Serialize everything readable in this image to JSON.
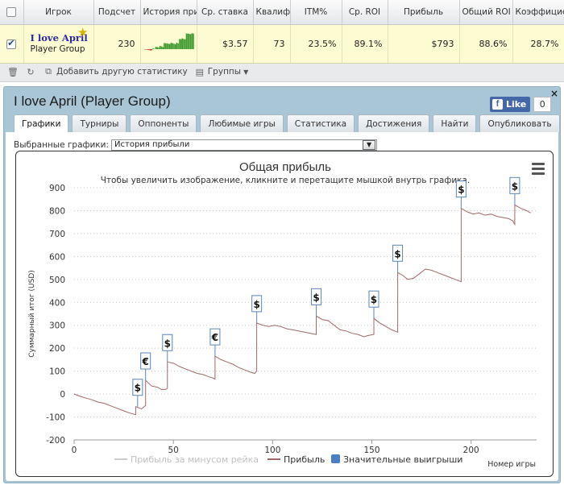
{
  "columns": {
    "player": "Игрок",
    "count": "Подсчет",
    "history": "История при",
    "avg_stake": "Ср. ставка",
    "qualif": "Квалиф",
    "itm": "ITM%",
    "avg_roi": "Ср. ROI",
    "profit": "Прибыль",
    "total_roi": "Общий ROI",
    "coef": "Коэффициент"
  },
  "row": {
    "name": "I love April",
    "group": "Player Group",
    "count": "230",
    "avg_stake": "$3.57",
    "qualif": "73",
    "itm": "23.5%",
    "avg_roi": "89.1%",
    "profit": "$793",
    "total_roi": "88.6%",
    "coef": "28.7%"
  },
  "toolbar": {
    "add_stats": "Добавить другую статистику",
    "groups": "Группы"
  },
  "panel": {
    "title": "I love April (Player Group)",
    "like_label": "Like",
    "like_count": "0",
    "close": "×"
  },
  "tabs": [
    "Графики",
    "Турниры",
    "Оппоненты",
    "Любимые игры",
    "Статистика",
    "Достижения",
    "Найти",
    "Опубликовать"
  ],
  "selector": {
    "label": "Выбранные графики:",
    "value": "История прибыли"
  },
  "chart_data": {
    "type": "line",
    "title": "Общая прибыль",
    "subtitle": "Чтобы увеличить изображение, кликните и перетащите мышкой внутрь графика.",
    "ylabel": "Суммарный итог (USD)",
    "xlabel": "Номер игры",
    "xlim": [
      0,
      233
    ],
    "ylim": [
      -200,
      900
    ],
    "xticks": [
      0,
      50,
      100,
      150,
      200
    ],
    "yticks": [
      -200,
      -100,
      0,
      100,
      200,
      300,
      400,
      500,
      600,
      700,
      800,
      900
    ],
    "grid": true,
    "legend_position": "bottom",
    "series": [
      {
        "name": "Прибыль за минусом рейка",
        "color": "#cccccc",
        "visible": false,
        "values": []
      },
      {
        "name": "Прибыль",
        "color": "#a06868",
        "x": [
          0,
          3,
          6,
          9,
          12,
          15,
          18,
          21,
          24,
          27,
          29,
          31,
          31,
          34,
          36,
          36,
          39,
          42,
          44,
          46,
          47,
          47,
          50,
          53,
          56,
          59,
          62,
          65,
          68,
          70,
          71,
          71,
          74,
          77,
          80,
          83,
          86,
          89,
          91,
          92,
          92,
          95,
          98,
          101,
          104,
          107,
          110,
          113,
          116,
          119,
          122,
          122,
          125,
          128,
          131,
          134,
          137,
          140,
          143,
          146,
          148,
          151,
          151,
          154,
          157,
          160,
          163,
          163,
          166,
          168,
          171,
          174,
          177,
          180,
          183,
          186,
          189,
          192,
          195,
          195,
          198,
          201,
          204,
          207,
          210,
          213,
          216,
          219,
          221,
          222,
          222,
          225,
          228,
          230
        ],
        "values": [
          0,
          -10,
          -18,
          -25,
          -35,
          -40,
          -50,
          -60,
          -70,
          -80,
          -85,
          -90,
          -55,
          -65,
          -50,
          60,
          35,
          30,
          20,
          20,
          25,
          140,
          135,
          120,
          110,
          100,
          90,
          85,
          75,
          70,
          65,
          165,
          150,
          140,
          130,
          115,
          105,
          95,
          90,
          100,
          310,
          300,
          295,
          300,
          295,
          285,
          280,
          275,
          270,
          265,
          260,
          340,
          325,
          320,
          300,
          280,
          275,
          265,
          260,
          250,
          255,
          260,
          330,
          310,
          295,
          280,
          270,
          530,
          515,
          500,
          505,
          525,
          545,
          540,
          530,
          520,
          510,
          500,
          490,
          810,
          795,
          785,
          790,
          780,
          785,
          775,
          770,
          765,
          755,
          740,
          825,
          810,
          800,
          790
        ]
      },
      {
        "name": "Значительные выигрыши",
        "color": "#4a7fc6",
        "type": "flags",
        "points": [
          {
            "x": 32,
            "y": -55,
            "label": "$"
          },
          {
            "x": 36,
            "y": 60,
            "label": "€"
          },
          {
            "x": 47,
            "y": 140,
            "label": "$"
          },
          {
            "x": 71,
            "y": 165,
            "label": "€"
          },
          {
            "x": 92,
            "y": 310,
            "label": "$"
          },
          {
            "x": 122,
            "y": 340,
            "label": "$"
          },
          {
            "x": 151,
            "y": 330,
            "label": "$"
          },
          {
            "x": 163,
            "y": 530,
            "label": "$"
          },
          {
            "x": 195,
            "y": 810,
            "label": "$"
          },
          {
            "x": 222,
            "y": 825,
            "label": "$"
          }
        ]
      }
    ]
  }
}
